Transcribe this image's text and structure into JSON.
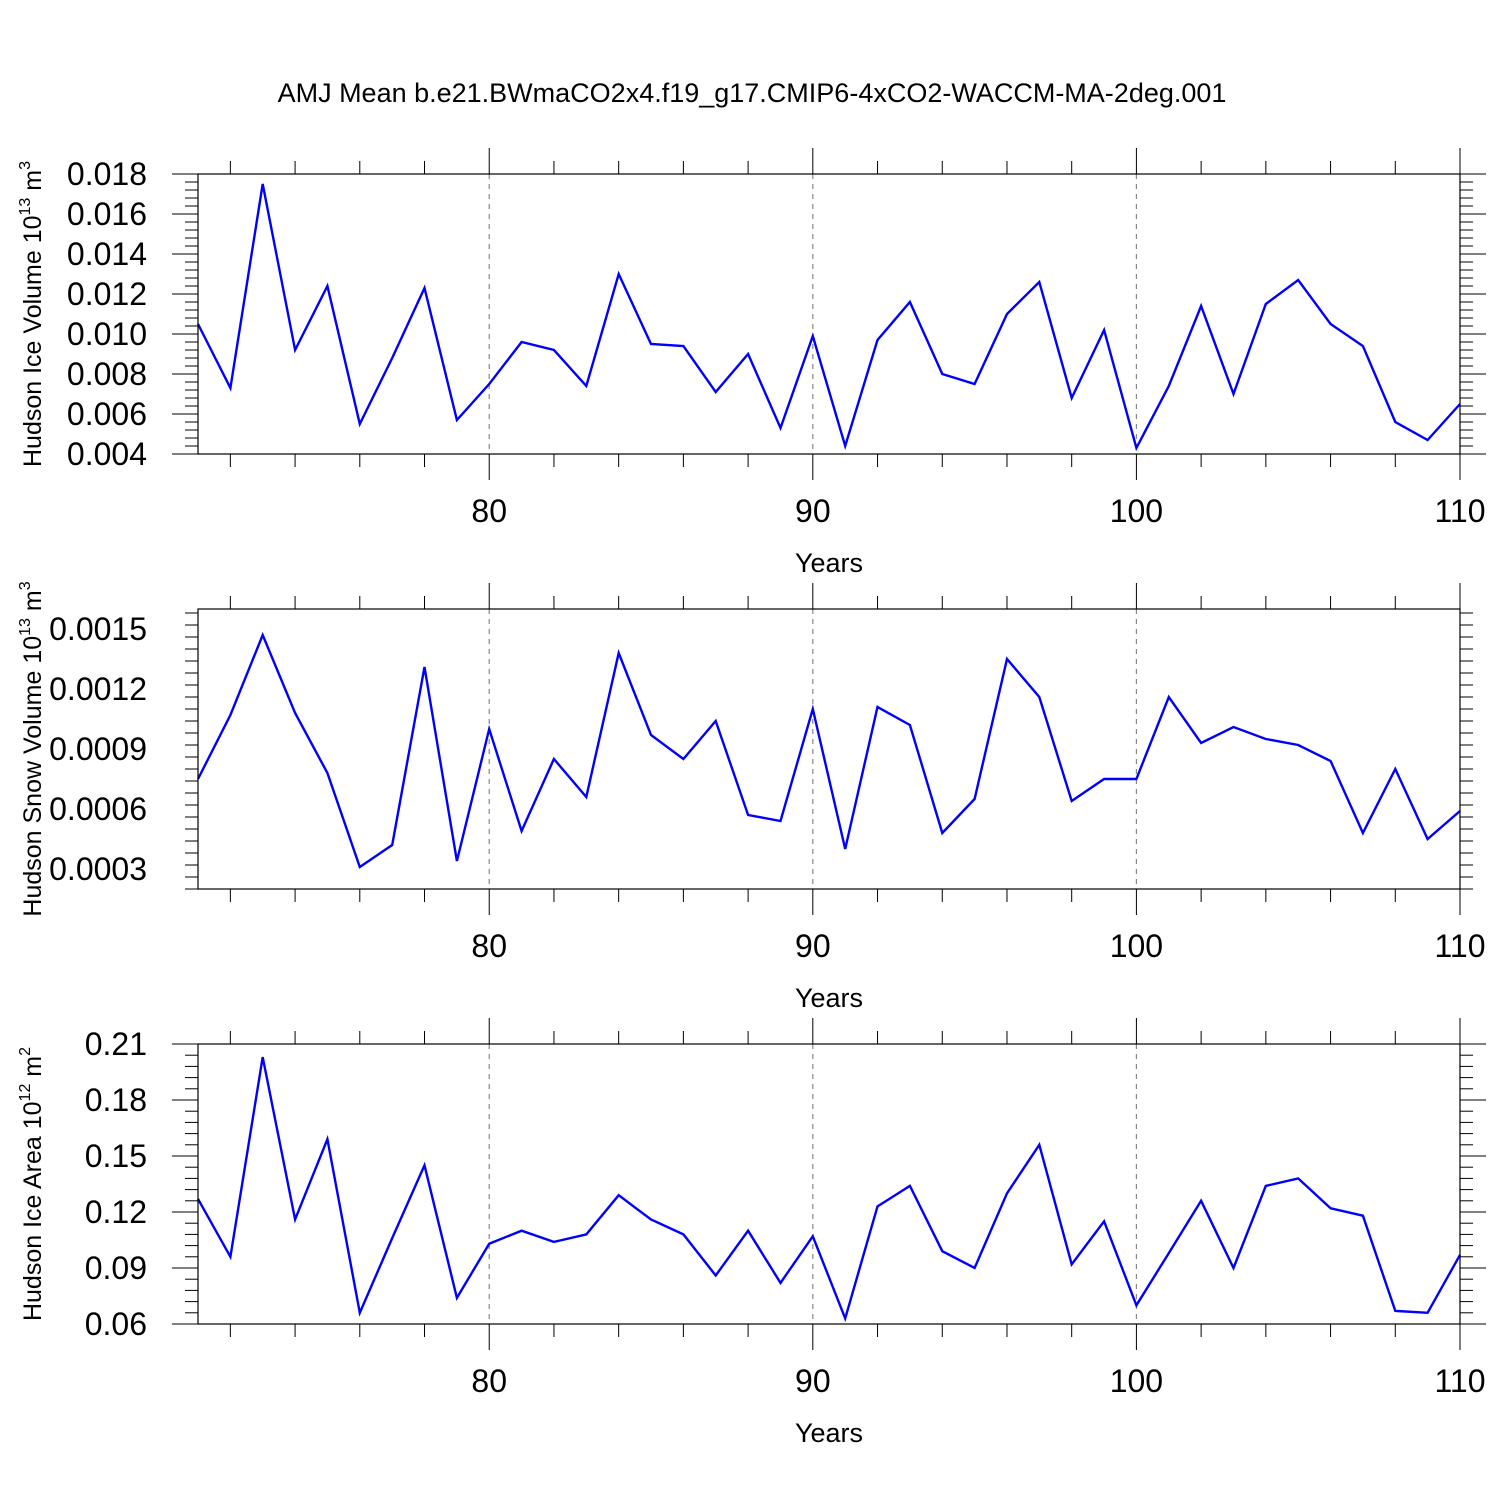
{
  "title": "AMJ Mean b.e21.BWmaCO2x4.f19_g17.CMIP6-4xCO2-WACCM-MA-2deg.001",
  "chart_data": [
    {
      "type": "line",
      "xlabel": "Years",
      "ylabel": "Hudson Ice Volume 10",
      "ylabel_exp": "13",
      "ylabel_unit": " m",
      "ylabel_unit_exp": "3",
      "xlim": [
        71,
        110
      ],
      "ylim": [
        0.004,
        0.018
      ],
      "xticks": [
        "80",
        "90",
        "100",
        "110"
      ],
      "yticks": [
        "0.004",
        "0.006",
        "0.008",
        "0.010",
        "0.012",
        "0.014",
        "0.016",
        "0.018"
      ],
      "grid": "dashed vertical at 80, 90, 100",
      "x": [
        71,
        72,
        73,
        74,
        75,
        76,
        77,
        78,
        79,
        80,
        81,
        82,
        83,
        84,
        85,
        86,
        87,
        88,
        89,
        90,
        91,
        92,
        93,
        94,
        95,
        96,
        97,
        98,
        99,
        100,
        101,
        102,
        103,
        104,
        105,
        106,
        107,
        108,
        109,
        110
      ],
      "series": [
        {
          "color": "#0000ff",
          "values": [
            0.0105,
            0.0073,
            0.0175,
            0.0092,
            0.0124,
            0.0055,
            0.0088,
            0.0123,
            0.0057,
            0.0075,
            0.0096,
            0.0092,
            0.0074,
            0.013,
            0.0095,
            0.0094,
            0.0071,
            0.009,
            0.0053,
            0.0099,
            0.0044,
            0.0097,
            0.0116,
            0.008,
            0.0075,
            0.011,
            0.0126,
            0.0068,
            0.0102,
            0.0043,
            0.0074,
            0.0114,
            0.007,
            0.0115,
            0.0127,
            0.0105,
            0.0094,
            0.0056,
            0.0047,
            0.0065
          ]
        }
      ]
    },
    {
      "type": "line",
      "xlabel": "Years",
      "ylabel": "Hudson Snow Volume 10",
      "ylabel_exp": "13",
      "ylabel_unit": " m",
      "ylabel_unit_exp": "3",
      "xlim": [
        71,
        110
      ],
      "ylim": [
        0.0002,
        0.0016
      ],
      "xticks": [
        "80",
        "90",
        "100",
        "110"
      ],
      "yticks": [
        "0.0003",
        "0.0006",
        "0.0009",
        "0.0012",
        "0.0015"
      ],
      "grid": "dashed vertical at 80, 90, 100",
      "x": [
        71,
        72,
        73,
        74,
        75,
        76,
        77,
        78,
        79,
        80,
        81,
        82,
        83,
        84,
        85,
        86,
        87,
        88,
        89,
        90,
        91,
        92,
        93,
        94,
        95,
        96,
        97,
        98,
        99,
        100,
        101,
        102,
        103,
        104,
        105,
        106,
        107,
        108,
        109,
        110
      ],
      "series": [
        {
          "color": "#0000ff",
          "values": [
            0.00075,
            0.00107,
            0.00147,
            0.00108,
            0.00078,
            0.00031,
            0.00042,
            0.00131,
            0.00034,
            0.001,
            0.00049,
            0.00085,
            0.00066,
            0.00138,
            0.00097,
            0.00085,
            0.00104,
            0.00057,
            0.00054,
            0.0011,
            0.0004,
            0.00111,
            0.00102,
            0.00048,
            0.00065,
            0.00135,
            0.00116,
            0.00064,
            0.00075,
            0.00075,
            0.00116,
            0.00093,
            0.00101,
            0.00095,
            0.00092,
            0.00084,
            0.00048,
            0.0008,
            0.00045,
            0.00059
          ]
        }
      ]
    },
    {
      "type": "line",
      "xlabel": "Years",
      "ylabel": "Hudson Ice Area 10",
      "ylabel_exp": "12",
      "ylabel_unit": " m",
      "ylabel_unit_exp": "2",
      "xlim": [
        71,
        110
      ],
      "ylim": [
        0.06,
        0.21
      ],
      "xticks": [
        "80",
        "90",
        "100",
        "110"
      ],
      "yticks": [
        "0.06",
        "0.09",
        "0.12",
        "0.15",
        "0.18",
        "0.21"
      ],
      "grid": "dashed vertical at 80, 90, 100",
      "x": [
        71,
        72,
        73,
        74,
        75,
        76,
        77,
        78,
        79,
        80,
        81,
        82,
        83,
        84,
        85,
        86,
        87,
        88,
        89,
        90,
        91,
        92,
        93,
        94,
        95,
        96,
        97,
        98,
        99,
        100,
        101,
        102,
        103,
        104,
        105,
        106,
        107,
        108,
        109,
        110
      ],
      "series": [
        {
          "color": "#0000ff",
          "values": [
            0.127,
            0.096,
            0.203,
            0.116,
            0.159,
            0.066,
            0.106,
            0.145,
            0.074,
            0.103,
            0.11,
            0.104,
            0.108,
            0.129,
            0.116,
            0.108,
            0.086,
            0.11,
            0.082,
            0.107,
            0.063,
            0.123,
            0.134,
            0.099,
            0.09,
            0.13,
            0.156,
            0.092,
            0.115,
            0.07,
            0.098,
            0.126,
            0.09,
            0.134,
            0.138,
            0.122,
            0.118,
            0.067,
            0.066,
            0.097
          ]
        }
      ]
    }
  ]
}
